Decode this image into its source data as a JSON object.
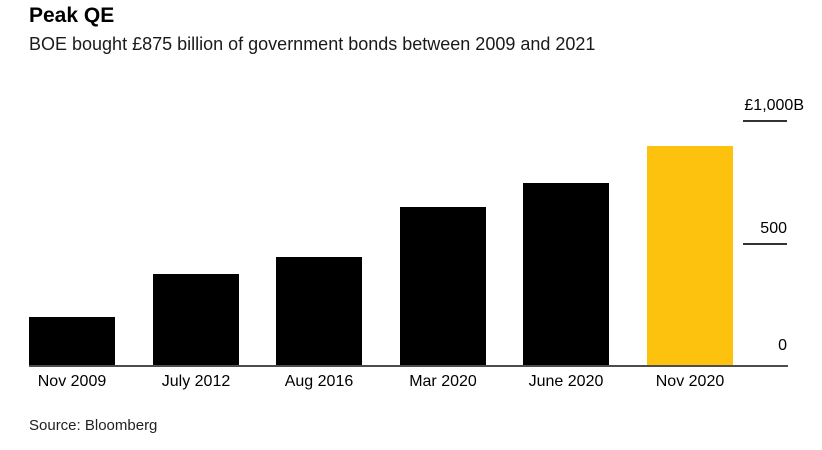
{
  "header": {
    "title": "Peak QE",
    "subtitle": "BOE bought £875 billion of government bonds between 2009 and 2021"
  },
  "source": "Source: Bloomberg",
  "colors": {
    "bar": "#000000",
    "highlight": "#FDC20E",
    "axis_line": "#4d4d4d",
    "tick_line": "#333333",
    "text": "#111111",
    "background": "#ffffff"
  },
  "chart_data": {
    "type": "bar",
    "title": "Peak QE",
    "subtitle": "BOE bought £875 billion of government bonds between 2009 and 2021",
    "categories": [
      "Nov 2009",
      "July 2012",
      "Aug 2016",
      "Mar 2020",
      "June 2020",
      "Nov 2020"
    ],
    "values": [
      200,
      375,
      445,
      645,
      745,
      895
    ],
    "unit": "£ billion",
    "bar_color": "#000000",
    "highlighted_category": "Nov 2020",
    "highlight_color": "#FDC20E",
    "y_axis": {
      "side": "right",
      "range": [
        0,
        1000
      ],
      "ticks": [
        {
          "value": 0,
          "label": "0"
        },
        {
          "value": 500,
          "label": "500"
        },
        {
          "value": 1000,
          "label": "£1,000B"
        }
      ]
    },
    "x_axis": {
      "label_position": "below"
    },
    "grid": false,
    "legend": "none",
    "source": "Source: Bloomberg"
  }
}
